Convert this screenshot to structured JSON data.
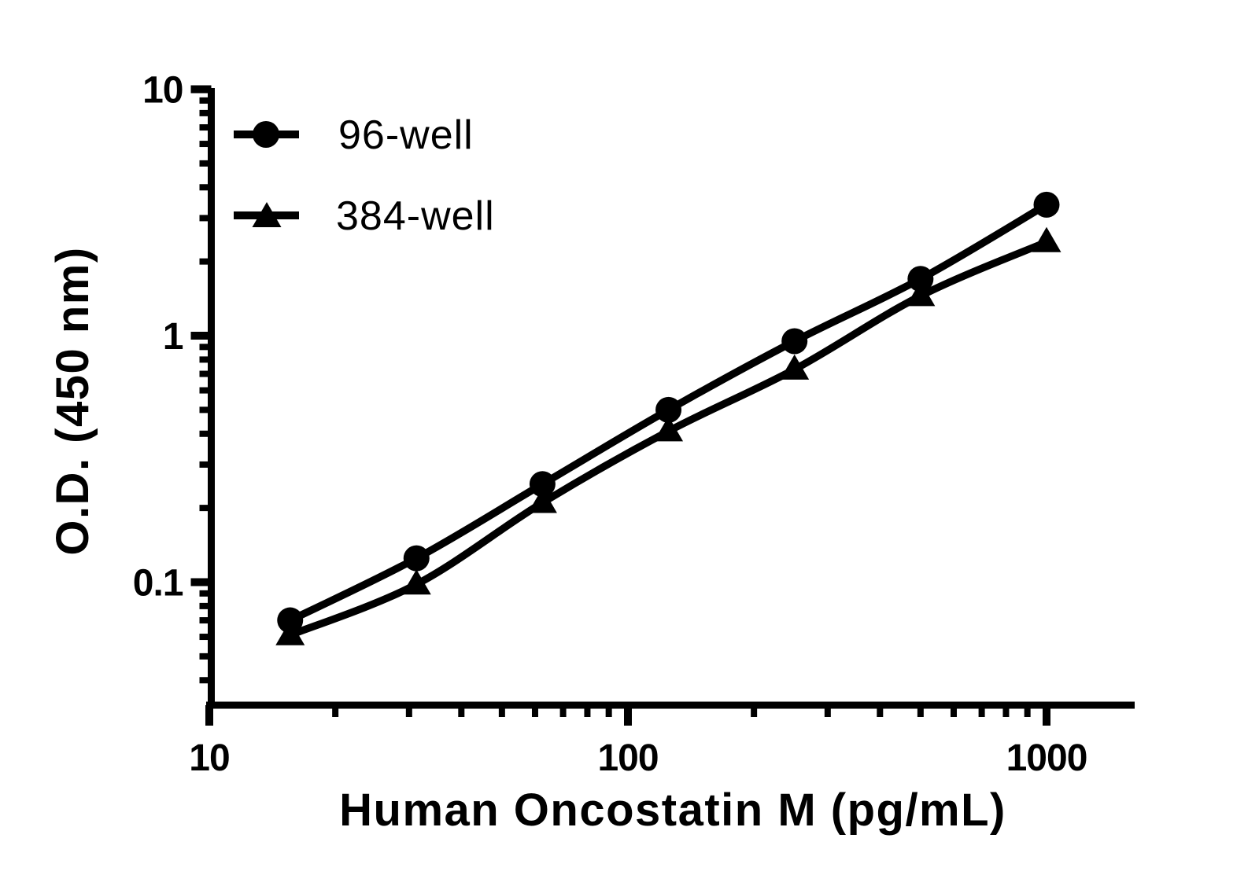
{
  "figure": {
    "background": "#ffffff",
    "foreground": "#000000"
  },
  "chart_data": {
    "type": "line",
    "x": [
      15.6,
      31.25,
      62.5,
      125,
      250,
      500,
      1000
    ],
    "series": [
      {
        "name": "96-well",
        "marker": "circle",
        "color": "#000000",
        "values": [
          0.07,
          0.125,
          0.25,
          0.5,
          0.95,
          1.7,
          3.4
        ]
      },
      {
        "name": "384-well",
        "marker": "triangle",
        "color": "#000000",
        "values": [
          0.061,
          0.098,
          0.21,
          0.41,
          0.73,
          1.45,
          2.4
        ]
      }
    ],
    "title": "",
    "xlabel": "Human Oncostatin M (pg/mL)",
    "ylabel": "O.D. (450 nm)",
    "x_scale": "log",
    "y_scale": "log",
    "xlim": [
      10,
      1600
    ],
    "ylim": [
      0.031,
      10.5
    ],
    "x_ticks": [
      10,
      100,
      1000
    ],
    "x_tick_labels": [
      "10",
      "100",
      "1000"
    ],
    "y_ticks": [
      10,
      1,
      0.1
    ],
    "y_tick_labels": [
      "10",
      "1",
      "0.1"
    ],
    "minor_ticks": "log-decades",
    "grid": false,
    "legend_position": "top-left"
  }
}
